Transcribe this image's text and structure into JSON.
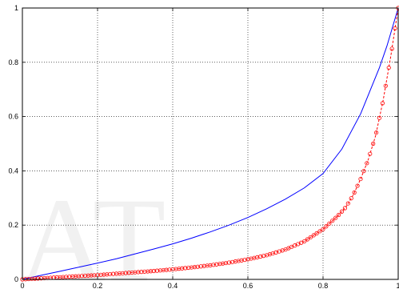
{
  "chart_data": {
    "type": "line",
    "title": "",
    "xlabel": "",
    "ylabel": "",
    "xlim": [
      0,
      1
    ],
    "ylim": [
      0,
      1
    ],
    "grid": true,
    "x_ticks": [
      "0",
      "0.2",
      "0.4",
      "0.6",
      "0.8",
      "1"
    ],
    "y_ticks": [
      "0",
      "0.2",
      "0.4",
      "0.6",
      "0.8",
      "1"
    ],
    "series": [
      {
        "color": "#0000ff",
        "style": "solid",
        "x": [
          0,
          0.05,
          0.1,
          0.15,
          0.2,
          0.25,
          0.3,
          0.35,
          0.4,
          0.45,
          0.5,
          0.55,
          0.6,
          0.65,
          0.7,
          0.75,
          0.8,
          0.85,
          0.9,
          0.95,
          0.97,
          1.0
        ],
        "y": [
          0,
          0.015,
          0.03,
          0.045,
          0.06,
          0.076,
          0.094,
          0.112,
          0.131,
          0.152,
          0.175,
          0.2,
          0.228,
          0.26,
          0.296,
          0.337,
          0.39,
          0.48,
          0.61,
          0.78,
          0.86,
          1.0
        ]
      },
      {
        "color": "#ff0000",
        "style": "dashed-circle-markers",
        "x": [
          0,
          0.05,
          0.1,
          0.15,
          0.2,
          0.25,
          0.3,
          0.35,
          0.4,
          0.45,
          0.5,
          0.55,
          0.6,
          0.65,
          0.7,
          0.75,
          0.8,
          0.82,
          0.84,
          0.86,
          0.88,
          0.9,
          0.92,
          0.94,
          0.96,
          0.98,
          1.0
        ],
        "y": [
          0,
          0.004,
          0.008,
          0.012,
          0.016,
          0.021,
          0.026,
          0.031,
          0.037,
          0.044,
          0.052,
          0.062,
          0.074,
          0.089,
          0.11,
          0.14,
          0.185,
          0.21,
          0.235,
          0.265,
          0.31,
          0.37,
          0.44,
          0.53,
          0.66,
          0.82,
          1.0
        ]
      }
    ]
  },
  "watermark_text": "AT"
}
